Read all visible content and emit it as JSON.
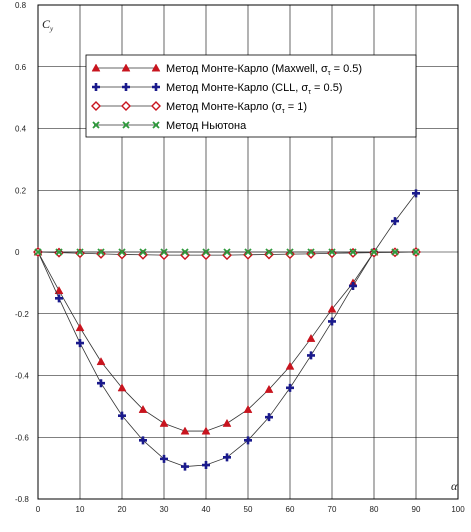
{
  "chart_data": {
    "type": "line",
    "title": "",
    "xlabel": "α",
    "ylabel": "C",
    "ylabel_sub": "y",
    "xlim": [
      0,
      100
    ],
    "ylim": [
      -0.8,
      0.8
    ],
    "x_ticks": [
      "0",
      "10",
      "20",
      "30",
      "40",
      "50",
      "60",
      "70",
      "80",
      "90",
      "100"
    ],
    "y_ticks": [
      "0.8",
      "0.6",
      "0.4",
      "0.2",
      "0",
      "-0.2",
      "-0.4",
      "-0.6",
      "-0.8"
    ],
    "grid": true,
    "legend_position": "top-right",
    "series": [
      {
        "name": "Метод Монте-Карло (Maxwell, στ = 0.5)",
        "legend_main": "Метод Монте-Карло (Maxwell, σ",
        "legend_sub": "τ",
        "legend_tail": " = 0.5)",
        "marker": "triangle",
        "color": "#c8141e",
        "x": [
          0,
          5,
          10,
          15,
          20,
          25,
          30,
          35,
          40,
          45,
          50,
          55,
          60,
          65,
          70,
          75,
          80
        ],
        "y": [
          0,
          -0.125,
          -0.245,
          -0.355,
          -0.44,
          -0.51,
          -0.555,
          -0.58,
          -0.58,
          -0.555,
          -0.51,
          -0.445,
          -0.37,
          -0.28,
          -0.185,
          -0.1,
          0
        ]
      },
      {
        "name": "Метод Монте-Карло (CLL, στ = 0.5)",
        "legend_main": "Метод Монте-Карло (CLL, σ",
        "legend_sub": "τ",
        "legend_tail": " = 0.5)",
        "marker": "plus",
        "color": "#1a1a8c",
        "x": [
          0,
          5,
          10,
          15,
          20,
          25,
          30,
          35,
          40,
          45,
          50,
          55,
          60,
          65,
          70,
          75,
          80,
          85,
          90
        ],
        "y": [
          0,
          -0.15,
          -0.295,
          -0.425,
          -0.53,
          -0.61,
          -0.67,
          -0.695,
          -0.69,
          -0.665,
          -0.61,
          -0.535,
          -0.44,
          -0.335,
          -0.225,
          -0.11,
          0,
          0.1,
          0.19
        ]
      },
      {
        "name": "Метод Монте-Карло (στ = 1)",
        "legend_main": "Метод Монте-Карло (σ",
        "legend_sub": "τ",
        "legend_tail": " = 1)",
        "marker": "diamond",
        "color": "#c8141e",
        "x": [
          0,
          5,
          10,
          15,
          20,
          25,
          30,
          35,
          40,
          45,
          50,
          55,
          60,
          65,
          70,
          75,
          80,
          85,
          90
        ],
        "y": [
          0,
          -0.002,
          -0.004,
          -0.006,
          -0.008,
          -0.009,
          -0.01,
          -0.01,
          -0.01,
          -0.01,
          -0.009,
          -0.008,
          -0.007,
          -0.006,
          -0.004,
          -0.003,
          -0.002,
          -0.001,
          0
        ]
      },
      {
        "name": "Метод Ньютона",
        "legend_main": "Метод Ньютона",
        "legend_sub": "",
        "legend_tail": "",
        "marker": "x",
        "color": "#2e9a3c",
        "x": [
          0,
          5,
          10,
          15,
          20,
          25,
          30,
          35,
          40,
          45,
          50,
          55,
          60,
          65,
          70,
          75,
          80,
          85,
          90
        ],
        "y": [
          0,
          0,
          0,
          0,
          0,
          0,
          0,
          0,
          0,
          0,
          0,
          0,
          0,
          0,
          0,
          0,
          0,
          0,
          0
        ]
      }
    ]
  }
}
